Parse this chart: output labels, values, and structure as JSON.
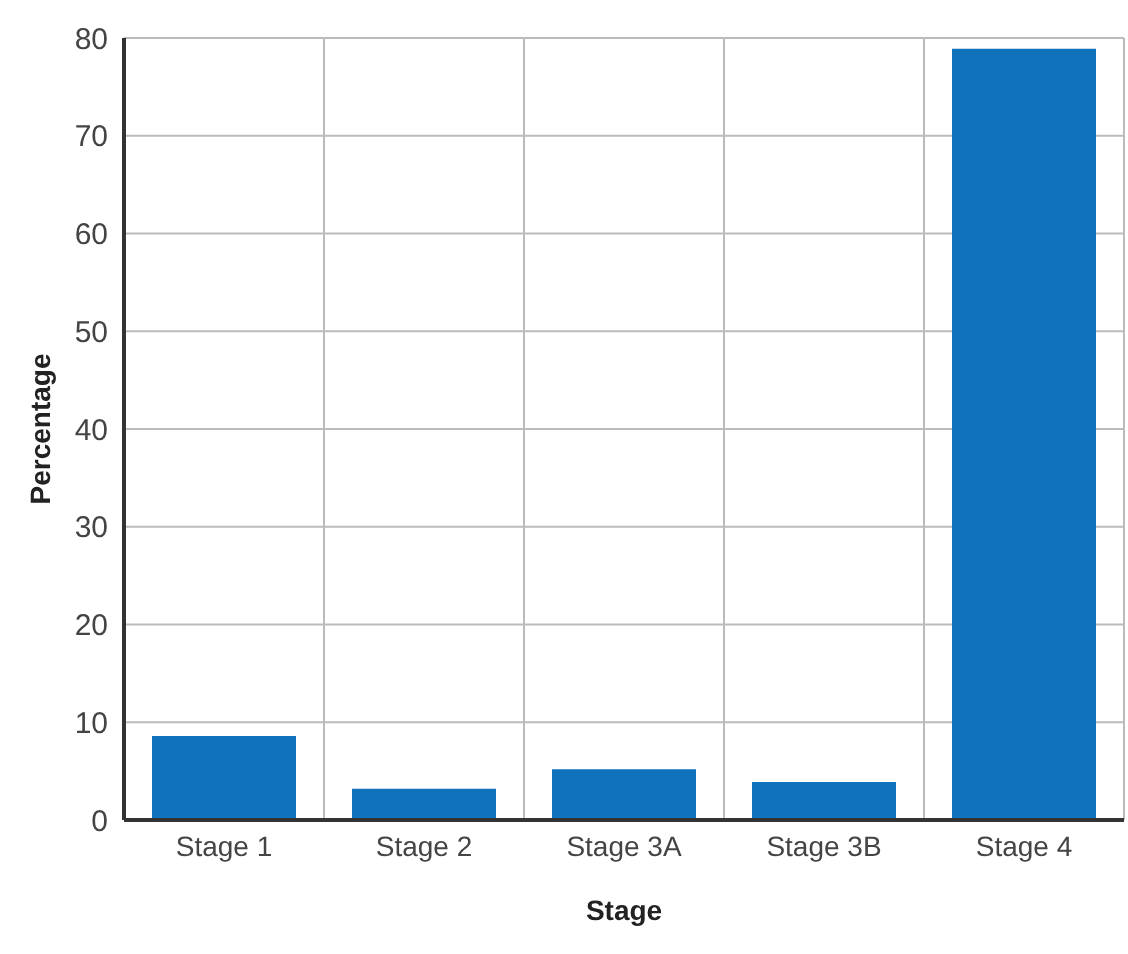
{
  "chart_data": {
    "type": "bar",
    "xlabel": "Stage",
    "ylabel": "Percentage",
    "categories": [
      "Stage 1",
      "Stage 2",
      "Stage 3A",
      "Stage 3B",
      "Stage 4"
    ],
    "values": [
      8.6,
      3.2,
      5.2,
      3.9,
      78.9
    ],
    "color": "#0f72bb",
    "ylim": [
      0,
      80
    ],
    "yticks": [
      0,
      10,
      20,
      30,
      40,
      50,
      60,
      70,
      80
    ],
    "grid": true
  }
}
